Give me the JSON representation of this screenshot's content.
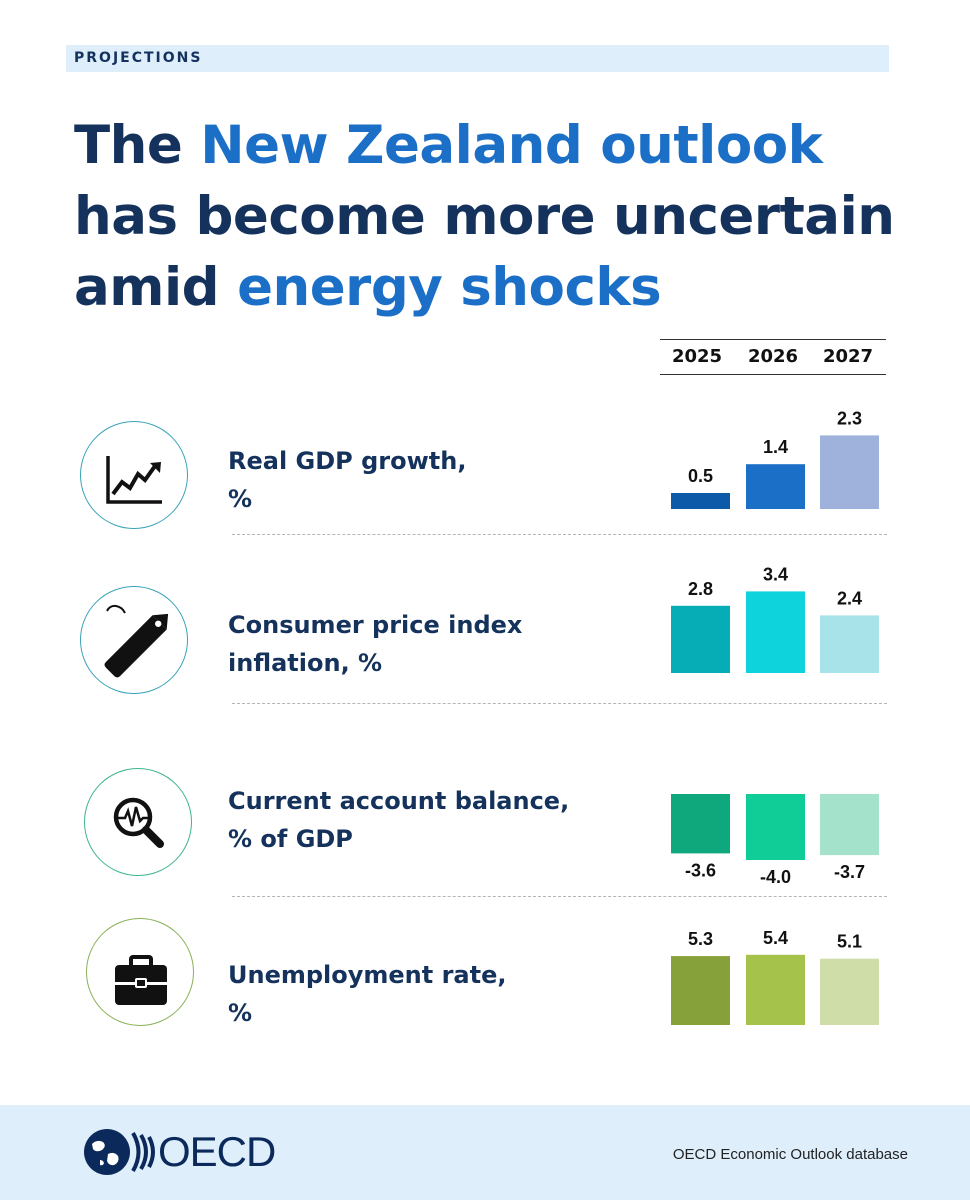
{
  "header": {
    "tag": "PROJECTIONS"
  },
  "title": {
    "part1": "The ",
    "part2": "New Zealand outlook",
    "part3": " has become more uncertain amid ",
    "part4": "energy shocks"
  },
  "years": [
    "2025",
    "2026",
    "2027"
  ],
  "colors": {
    "navy": "#14325c",
    "accent": "#1c6fc7",
    "gdp": [
      "#0d5aa8",
      "#1c6fc7",
      "#9fb2dc"
    ],
    "cpi": [
      "#07adb6",
      "#0ed3dc",
      "#a7e3e9"
    ],
    "current_account": [
      "#0ea87c",
      "#10cd98",
      "#a4e2cc"
    ],
    "unemployment": [
      "#86a03a",
      "#a5c24a",
      "#cfdda9"
    ]
  },
  "rows": [
    {
      "label_line1": "Real GDP growth,",
      "label_line2": "%",
      "icon": "line-chart-icon"
    },
    {
      "label_line1": "Consumer price index",
      "label_line2": "inflation, %",
      "icon": "price-tag-icon"
    },
    {
      "label_line1": "Current account balance,",
      "label_line2": "% of GDP",
      "icon": "magnifier-pulse-icon"
    },
    {
      "label_line1": "Unemployment rate,",
      "label_line2": "%",
      "icon": "briefcase-icon"
    }
  ],
  "chart_data": [
    {
      "type": "bar",
      "categories": [
        "2025",
        "2026",
        "2027"
      ],
      "values": [
        0.5,
        1.4,
        2.3
      ],
      "labels": [
        "0.5",
        "1.4",
        "2.3"
      ]
    },
    {
      "type": "bar",
      "categories": [
        "2025",
        "2026",
        "2027"
      ],
      "values": [
        2.8,
        3.4,
        2.4
      ],
      "labels": [
        "2.8",
        "3.4",
        "2.4"
      ]
    },
    {
      "type": "bar",
      "categories": [
        "2025",
        "2026",
        "2027"
      ],
      "values": [
        -3.6,
        -4.0,
        -3.7
      ],
      "labels": [
        "-3.6",
        "-4.0",
        "-3.7"
      ]
    },
    {
      "type": "bar",
      "categories": [
        "2025",
        "2026",
        "2027"
      ],
      "values": [
        5.3,
        5.4,
        5.1
      ],
      "labels": [
        "5.3",
        "5.4",
        "5.1"
      ]
    }
  ],
  "footer": {
    "logo_text": "OECD",
    "source": "OECD Economic Outlook database"
  }
}
